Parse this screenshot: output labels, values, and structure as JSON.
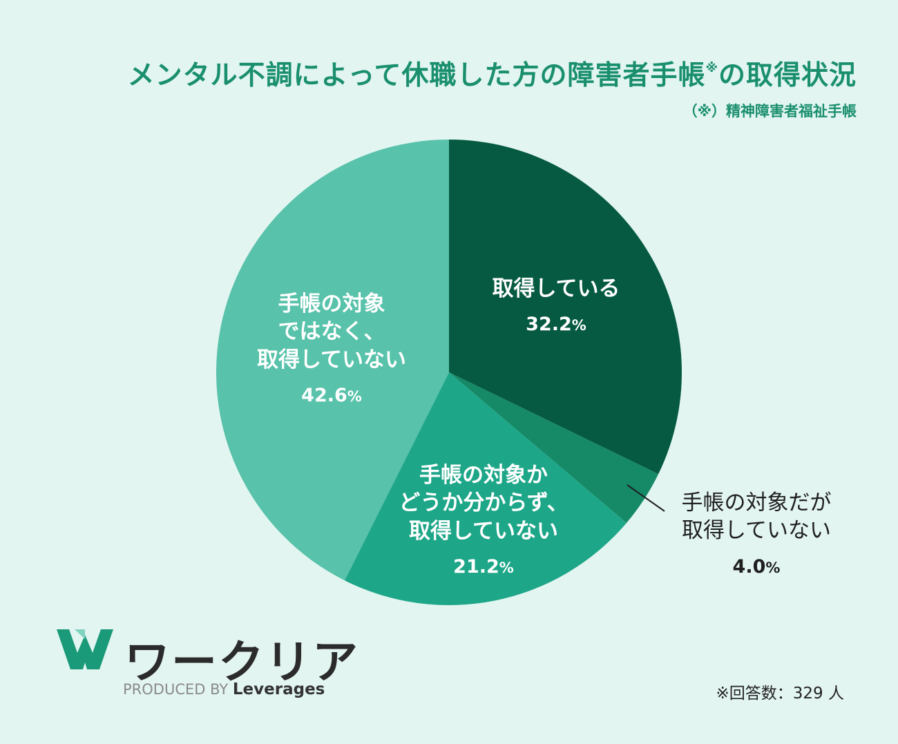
{
  "title": "メンタル不調によって休職した方の障害者手帳",
  "title_mark": "※",
  "title_suffix": "の取得状況",
  "subtitle": "（※）精神障害者福祉手帳",
  "chart_data": {
    "type": "pie",
    "title": "メンタル不調によって休職した方の障害者手帳※の取得状況",
    "slices": [
      {
        "label": "取得している",
        "value": 32.2,
        "color": "#065a41"
      },
      {
        "label": "手帳の対象だが取得していない",
        "value": 4.0,
        "color": "#168a67"
      },
      {
        "label": "手帳の対象かどうか分からず、取得していない",
        "value": 21.2,
        "color": "#1ea688"
      },
      {
        "label": "手帳の対象ではなく、取得していない",
        "value": 42.6,
        "color": "#58c2aa"
      }
    ],
    "unit": "%"
  },
  "labels": {
    "s1_line1": "取得している",
    "s1_pct": "32.2",
    "s2_line1": "手帳の対象だが",
    "s2_line2": "取得していない",
    "s2_pct": "4.0",
    "s3_line1": "手帳の対象か",
    "s3_line2": "どうか分からず、",
    "s3_line3": "取得していない",
    "s3_pct": "21.2",
    "s4_line1": "手帳の対象",
    "s4_line2": "ではなく、",
    "s4_line3": "取得していない",
    "s4_pct": "42.6",
    "percent_sign": "%"
  },
  "brand": {
    "name": "ワークリア",
    "produced_by": "PRODUCED BY",
    "company": "Leverages",
    "logo_color": "#1a9a78"
  },
  "footnote": "※回答数：329 人"
}
